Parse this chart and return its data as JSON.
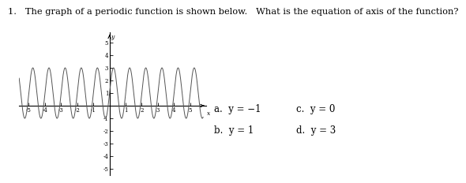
{
  "title_text": "1.   The graph of a periodic function is shown below.   What is the equation of axis of the function?",
  "xlabel": "x",
  "ylabel": "y",
  "xlim": [
    -5.6,
    6.0
  ],
  "ylim": [
    -5.5,
    5.8
  ],
  "xticks": [
    -5,
    -4,
    -3,
    -2,
    -1,
    1,
    2,
    3,
    4,
    5
  ],
  "yticks": [
    -5,
    -4,
    -3,
    -2,
    -1,
    1,
    2,
    3,
    4,
    5
  ],
  "amplitude": 2.0,
  "midline": 1.0,
  "period": 1.0,
  "x_start": -5.6,
  "x_end": 5.8,
  "answer_options": [
    "a.  y = −1",
    "b.  y = 1",
    "c.  y = 0",
    "d.  y = 3"
  ],
  "line_color": "#555555",
  "axis_color": "#000000",
  "bg_color": "#ffffff",
  "font_size_title": 8.2,
  "font_size_answers": 8.5
}
